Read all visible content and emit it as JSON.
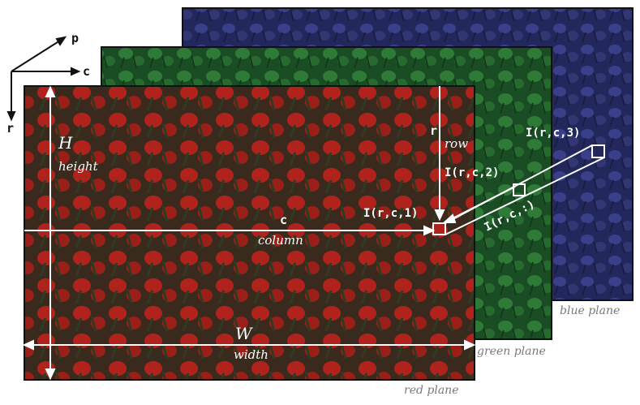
{
  "axes": {
    "p": "p",
    "c": "c",
    "r": "r"
  },
  "planes": {
    "blue": {
      "label": "blue plane",
      "color": "#2a2f6e"
    },
    "green": {
      "label": "green plane",
      "color": "#1f5a2a"
    },
    "red": {
      "label": "red plane",
      "color": "#7a1f1a"
    }
  },
  "dimensions": {
    "H": "H",
    "height": "height",
    "W": "W",
    "width": "width"
  },
  "annotations": {
    "row_symbol": "r",
    "row_word": "row",
    "col_symbol": "c",
    "col_word": "column",
    "I1": "I(r,c,1)",
    "I2": "I(r,c,2)",
    "I3": "I(r,c,3)",
    "Iall": "I(r,c,:)"
  },
  "colors": {
    "annotation": "#ffffff",
    "label_gray": "#7a7a7a",
    "axis_black": "#111111"
  }
}
